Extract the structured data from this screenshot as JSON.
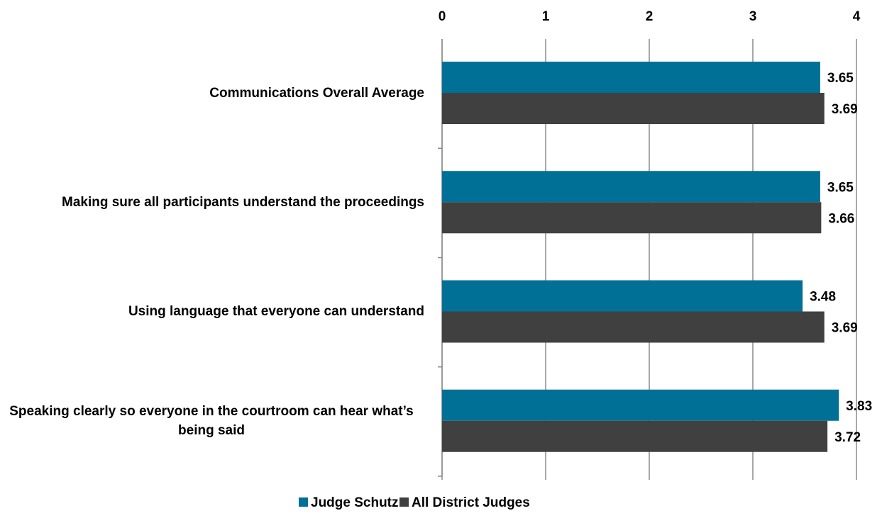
{
  "chart_data": {
    "type": "bar",
    "orientation": "horizontal",
    "categories": [
      "Communications Overall Average",
      "Making sure all participants understand the proceedings",
      "Using language that everyone can understand",
      "Speaking clearly so everyone in the courtroom can hear what’s being said"
    ],
    "series": [
      {
        "name": "Judge Schutz",
        "color": "#007096",
        "values": [
          3.65,
          3.65,
          3.48,
          3.83
        ]
      },
      {
        "name": "All District Judges",
        "color": "#404040",
        "values": [
          3.69,
          3.66,
          3.69,
          3.72
        ]
      }
    ],
    "xlim": [
      0,
      4
    ],
    "xticks": [
      0,
      1,
      2,
      3,
      4
    ],
    "grid": true,
    "legend": "bottom"
  }
}
